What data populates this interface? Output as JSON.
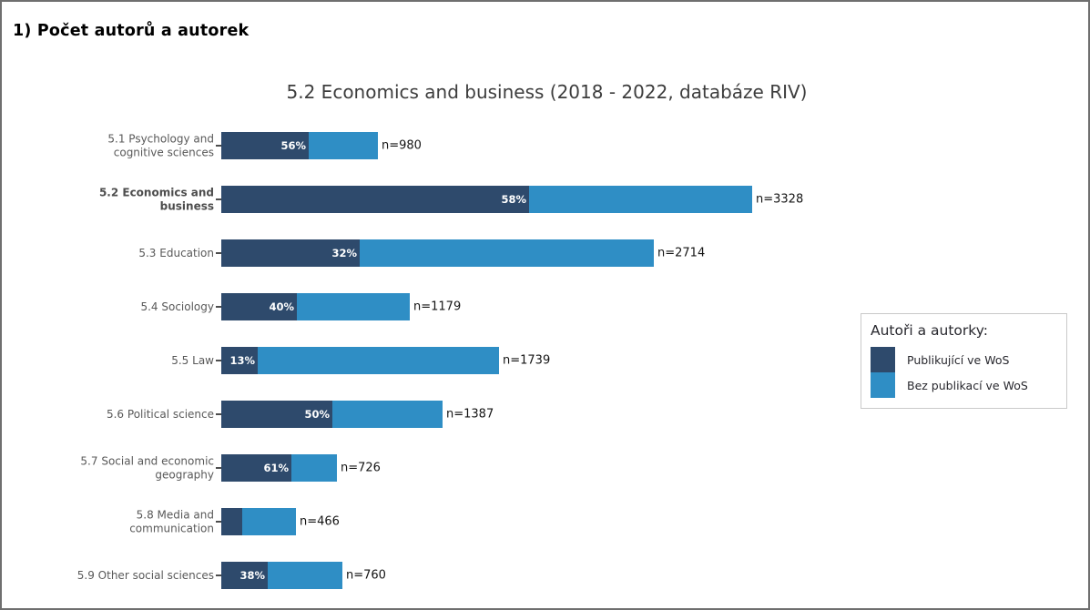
{
  "page": {
    "heading": "1) Počet autorů a autorek"
  },
  "chart_data": {
    "type": "bar",
    "orientation": "horizontal-stacked",
    "title": "5.2 Economics and business (2018 - 2022, databáze RIV)",
    "categories": [
      "5.1 Psychology and cognitive sciences",
      "5.2 Economics and business",
      "5.3 Education",
      "5.4 Sociology",
      "5.5 Law",
      "5.6 Political science",
      "5.7 Social and economic geography",
      "5.8 Media and communication",
      "5.9 Other social sciences"
    ],
    "n_values": [
      980,
      3328,
      2714,
      1179,
      1739,
      1387,
      726,
      466,
      760
    ],
    "series": [
      {
        "name": "Publikující ve WoS",
        "color": "#2e4a6c",
        "pct_values": [
          56,
          58,
          32,
          40,
          13,
          50,
          61,
          28,
          38
        ]
      },
      {
        "name": "Bez publikací ve WoS",
        "color": "#2f8ec5",
        "note": "remainder of each bar (100% - dark pct)"
      }
    ],
    "rows": [
      {
        "label_lines": [
          "5.1 Psychology and",
          "cognitive sciences"
        ],
        "bold": false,
        "pct": 56,
        "pct_label": "56%",
        "pct_shown": true,
        "n": 980,
        "n_label": "n=980"
      },
      {
        "label_lines": [
          "5.2 Economics and",
          "business"
        ],
        "bold": true,
        "pct": 58,
        "pct_label": "58%",
        "pct_shown": true,
        "n": 3328,
        "n_label": "n=3328"
      },
      {
        "label_lines": [
          "5.3 Education"
        ],
        "bold": false,
        "pct": 32,
        "pct_label": "32%",
        "pct_shown": true,
        "n": 2714,
        "n_label": "n=2714"
      },
      {
        "label_lines": [
          "5.4 Sociology"
        ],
        "bold": false,
        "pct": 40,
        "pct_label": "40%",
        "pct_shown": true,
        "n": 1179,
        "n_label": "n=1179"
      },
      {
        "label_lines": [
          "5.5 Law"
        ],
        "bold": false,
        "pct": 13,
        "pct_label": "13%",
        "pct_shown": true,
        "n": 1739,
        "n_label": "n=1739"
      },
      {
        "label_lines": [
          "5.6 Political science"
        ],
        "bold": false,
        "pct": 50,
        "pct_label": "50%",
        "pct_shown": true,
        "n": 1387,
        "n_label": "n=1387"
      },
      {
        "label_lines": [
          "5.7 Social and economic",
          "geography"
        ],
        "bold": false,
        "pct": 61,
        "pct_label": "61%",
        "pct_shown": true,
        "n": 726,
        "n_label": "n=726"
      },
      {
        "label_lines": [
          "5.8 Media and",
          "communication"
        ],
        "bold": false,
        "pct": 28,
        "pct_label": "",
        "pct_shown": false,
        "n": 466,
        "n_label": "n=466"
      },
      {
        "label_lines": [
          "5.9 Other social sciences"
        ],
        "bold": false,
        "pct": 38,
        "pct_label": "38%",
        "pct_shown": true,
        "n": 760,
        "n_label": "n=760"
      }
    ],
    "legend": {
      "title": "Autoři a autorky:",
      "position": "right",
      "items": [
        {
          "label": "Publikující ve WoS",
          "color": "#2e4a6c"
        },
        {
          "label": "Bez publikací ve WoS",
          "color": "#2f8ec5"
        }
      ]
    },
    "colors": {
      "dark": "#2e4a6c",
      "light": "#2f8ec5"
    },
    "xlabel": "",
    "ylabel": "",
    "grid": false
  }
}
